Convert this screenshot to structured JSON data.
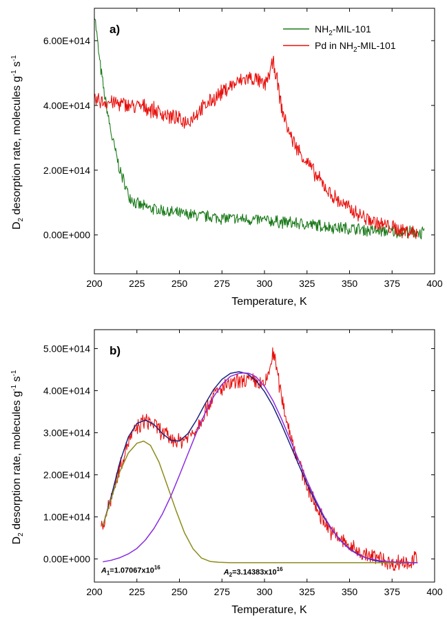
{
  "chart_data": [
    {
      "type": "line",
      "panel_label": "a)",
      "xlabel": "Temperature, K",
      "ylabel": "D2 desorption rate, molecules g-1 s-1",
      "xlim": [
        200,
        400
      ],
      "ylim": [
        -120000000000000.0,
        700000000000000.0
      ],
      "x_ticks": [
        200,
        225,
        250,
        275,
        300,
        325,
        350,
        375,
        400
      ],
      "x_tick_labels": [
        "200",
        "225",
        "250",
        "275",
        "300",
        "325",
        "350",
        "375",
        "400"
      ],
      "y_ticks": [
        0,
        200000000000000.0,
        400000000000000.0,
        600000000000000.0
      ],
      "y_tick_labels": [
        "0.00E+000",
        "2.00E+014",
        "4.00E+014",
        "6.00E+014"
      ],
      "legend_position": "top-right",
      "series": [
        {
          "name": "NH2-MIL-101",
          "color": "#1a7a1a",
          "x": [
            200,
            203,
            206,
            210,
            215,
            220,
            225,
            230,
            240,
            250,
            260,
            270,
            280,
            290,
            300,
            310,
            320,
            330,
            340,
            350,
            360,
            370,
            380,
            390,
            394
          ],
          "y": [
            690000000000000.0,
            540000000000000.0,
            430000000000000.0,
            310000000000000.0,
            200000000000000.0,
            125000000000000.0,
            95000000000000.0,
            85000000000000.0,
            75000000000000.0,
            65000000000000.0,
            60000000000000.0,
            55000000000000.0,
            50000000000000.0,
            48000000000000.0,
            45000000000000.0,
            40000000000000.0,
            35000000000000.0,
            30000000000000.0,
            24000000000000.0,
            20000000000000.0,
            15000000000000.0,
            12000000000000.0,
            10000000000000.0,
            7000000000000.0,
            5000000000000.0
          ]
        },
        {
          "name": "Pd in NH2-MIL-101",
          "color": "#e8100c",
          "x": [
            200,
            210,
            220,
            230,
            240,
            250,
            255,
            260,
            270,
            280,
            290,
            295,
            300,
            303,
            305,
            306,
            308,
            310,
            315,
            320,
            325,
            330,
            340,
            350,
            360,
            370,
            380,
            390
          ],
          "y": [
            415000000000000.0,
            410000000000000.0,
            400000000000000.0,
            395000000000000.0,
            375000000000000.0,
            355000000000000.0,
            350000000000000.0,
            375000000000000.0,
            420000000000000.0,
            460000000000000.0,
            485000000000000.0,
            480000000000000.0,
            460000000000000.0,
            500000000000000.0,
            530000000000000.0,
            520000000000000.0,
            460000000000000.0,
            390000000000000.0,
            310000000000000.0,
            260000000000000.0,
            225000000000000.0,
            185000000000000.0,
            120000000000000.0,
            80000000000000.0,
            50000000000000.0,
            30000000000000.0,
            15000000000000.0,
            10000000000000.0
          ]
        }
      ]
    },
    {
      "type": "line",
      "panel_label": "b)",
      "xlabel": "Temperature, K",
      "ylabel": "D2 desorption rate, molecules g-1 s-1",
      "xlim": [
        200,
        400
      ],
      "ylim": [
        -55000000000000.0,
        545000000000000.0
      ],
      "x_ticks": [
        200,
        225,
        250,
        275,
        300,
        325,
        350,
        375,
        400
      ],
      "x_tick_labels": [
        "200",
        "225",
        "250",
        "275",
        "300",
        "325",
        "350",
        "375",
        "400"
      ],
      "y_ticks": [
        0,
        100000000000000.0,
        200000000000000.0,
        300000000000000.0,
        400000000000000.0,
        500000000000000.0
      ],
      "y_tick_labels": [
        "0.00E+000",
        "1.00E+014",
        "2.00E+014",
        "3.00E+014",
        "4.00E+014",
        "5.00E+014"
      ],
      "annotations": [
        {
          "prefix": "A",
          "sub": "1",
          "text": "=1.07067x10",
          "sup": "16",
          "x": 204,
          "y": -33000000000000.0
        },
        {
          "prefix": "A",
          "sub": "2",
          "text": "=3.14383x10",
          "sup": "16",
          "x": 276,
          "y": -37000000000000.0
        }
      ],
      "series": [
        {
          "color": "#e8100c",
          "x": [
            204,
            207,
            210,
            215,
            220,
            225,
            230,
            235,
            240,
            245,
            250,
            255,
            260,
            265,
            270,
            275,
            280,
            285,
            290,
            295,
            300,
            303,
            305,
            306,
            308,
            310,
            315,
            320,
            325,
            330,
            335,
            340,
            345,
            350,
            355,
            360,
            365,
            370,
            375,
            380,
            385,
            390
          ],
          "y": [
            70000000000000.0,
            105000000000000.0,
            150000000000000.0,
            220000000000000.0,
            280000000000000.0,
            310000000000000.0,
            330000000000000.0,
            320000000000000.0,
            300000000000000.0,
            285000000000000.0,
            280000000000000.0,
            290000000000000.0,
            310000000000000.0,
            350000000000000.0,
            390000000000000.0,
            405000000000000.0,
            415000000000000.0,
            420000000000000.0,
            425000000000000.0,
            420000000000000.0,
            410000000000000.0,
            450000000000000.0,
            490000000000000.0,
            480000000000000.0,
            430000000000000.0,
            385000000000000.0,
            300000000000000.0,
            230000000000000.0,
            175000000000000.0,
            125000000000000.0,
            90000000000000.0,
            60000000000000.0,
            45000000000000.0,
            30000000000000.0,
            18000000000000.0,
            8000000000000.0,
            4000000000000.0,
            0.0,
            -15000000000000.0,
            -5000000000000.0,
            -10000000000000.0,
            5000000000000.0
          ]
        },
        {
          "color": "#1a237e",
          "x": [
            205,
            210,
            215,
            220,
            225,
            230,
            235,
            240,
            245,
            250,
            255,
            260,
            265,
            270,
            275,
            280,
            285,
            290,
            295,
            300,
            305,
            310,
            315,
            320,
            325,
            330,
            335,
            340,
            345,
            350,
            355,
            360,
            365,
            370,
            375,
            380,
            385,
            390
          ],
          "y": [
            78000000000000.0,
            150000000000000.0,
            230000000000000.0,
            290000000000000.0,
            322000000000000.0,
            330000000000000.0,
            320000000000000.0,
            298000000000000.0,
            282000000000000.0,
            280000000000000.0,
            298000000000000.0,
            330000000000000.0,
            368000000000000.0,
            402000000000000.0,
            427000000000000.0,
            441000000000000.0,
            445000000000000.0,
            440000000000000.0,
            424000000000000.0,
            398000000000000.0,
            363000000000000.0,
            320000000000000.0,
            273000000000000.0,
            225000000000000.0,
            178000000000000.0,
            136000000000000.0,
            98000000000000.0,
            68000000000000.0,
            43000000000000.0,
            24000000000000.0,
            11000000000000.0,
            2000000000000.0,
            -4000000000000.0,
            -7000000000000.0,
            -8000000000000.0,
            -9000000000000.0,
            -9000000000000.0,
            -9000000000000.0
          ]
        },
        {
          "color": "#8b8b1a",
          "x": [
            205,
            210,
            215,
            220,
            225,
            229,
            233,
            238,
            243,
            248,
            253,
            258,
            263,
            268,
            273,
            280,
            290,
            300,
            320,
            340,
            360,
            380,
            390
          ],
          "y": [
            78000000000000.0,
            145000000000000.0,
            208000000000000.0,
            252000000000000.0,
            275000000000000.0,
            280000000000000.0,
            270000000000000.0,
            230000000000000.0,
            173000000000000.0,
            115000000000000.0,
            62000000000000.0,
            24000000000000.0,
            2000000000000.0,
            -6000000000000.0,
            -8000000000000.0,
            -9000000000000.0,
            -9000000000000.0,
            -9000000000000.0,
            -9000000000000.0,
            -9000000000000.0,
            -9000000000000.0,
            -9000000000000.0,
            -9000000000000.0
          ]
        },
        {
          "color": "#8a2be2",
          "x": [
            205,
            210,
            215,
            220,
            225,
            230,
            235,
            240,
            245,
            250,
            255,
            260,
            265,
            270,
            275,
            280,
            285,
            288,
            291,
            295,
            300,
            305,
            310,
            315,
            320,
            325,
            330,
            335,
            340,
            345,
            350,
            355,
            360,
            370,
            380,
            390
          ],
          "y": [
            -7000000000000.0,
            -3000000000000.0,
            3000000000000.0,
            12000000000000.0,
            25000000000000.0,
            45000000000000.0,
            72000000000000.0,
            107000000000000.0,
            150000000000000.0,
            199000000000000.0,
            250000000000000.0,
            300000000000000.0,
            346000000000000.0,
            385000000000000.0,
            415000000000000.0,
            434000000000000.0,
            441000000000000.0,
            442000000000000.0,
            441000000000000.0,
            433000000000000.0,
            410000000000000.0,
            376000000000000.0,
            333000000000000.0,
            285000000000000.0,
            236000000000000.0,
            186000000000000.0,
            141000000000000.0,
            101000000000000.0,
            68000000000000.0,
            42000000000000.0,
            23000000000000.0,
            10000000000000.0,
            2000000000000.0,
            -6000000000000.0,
            -8000000000000.0,
            -9000000000000.0
          ]
        }
      ]
    }
  ]
}
